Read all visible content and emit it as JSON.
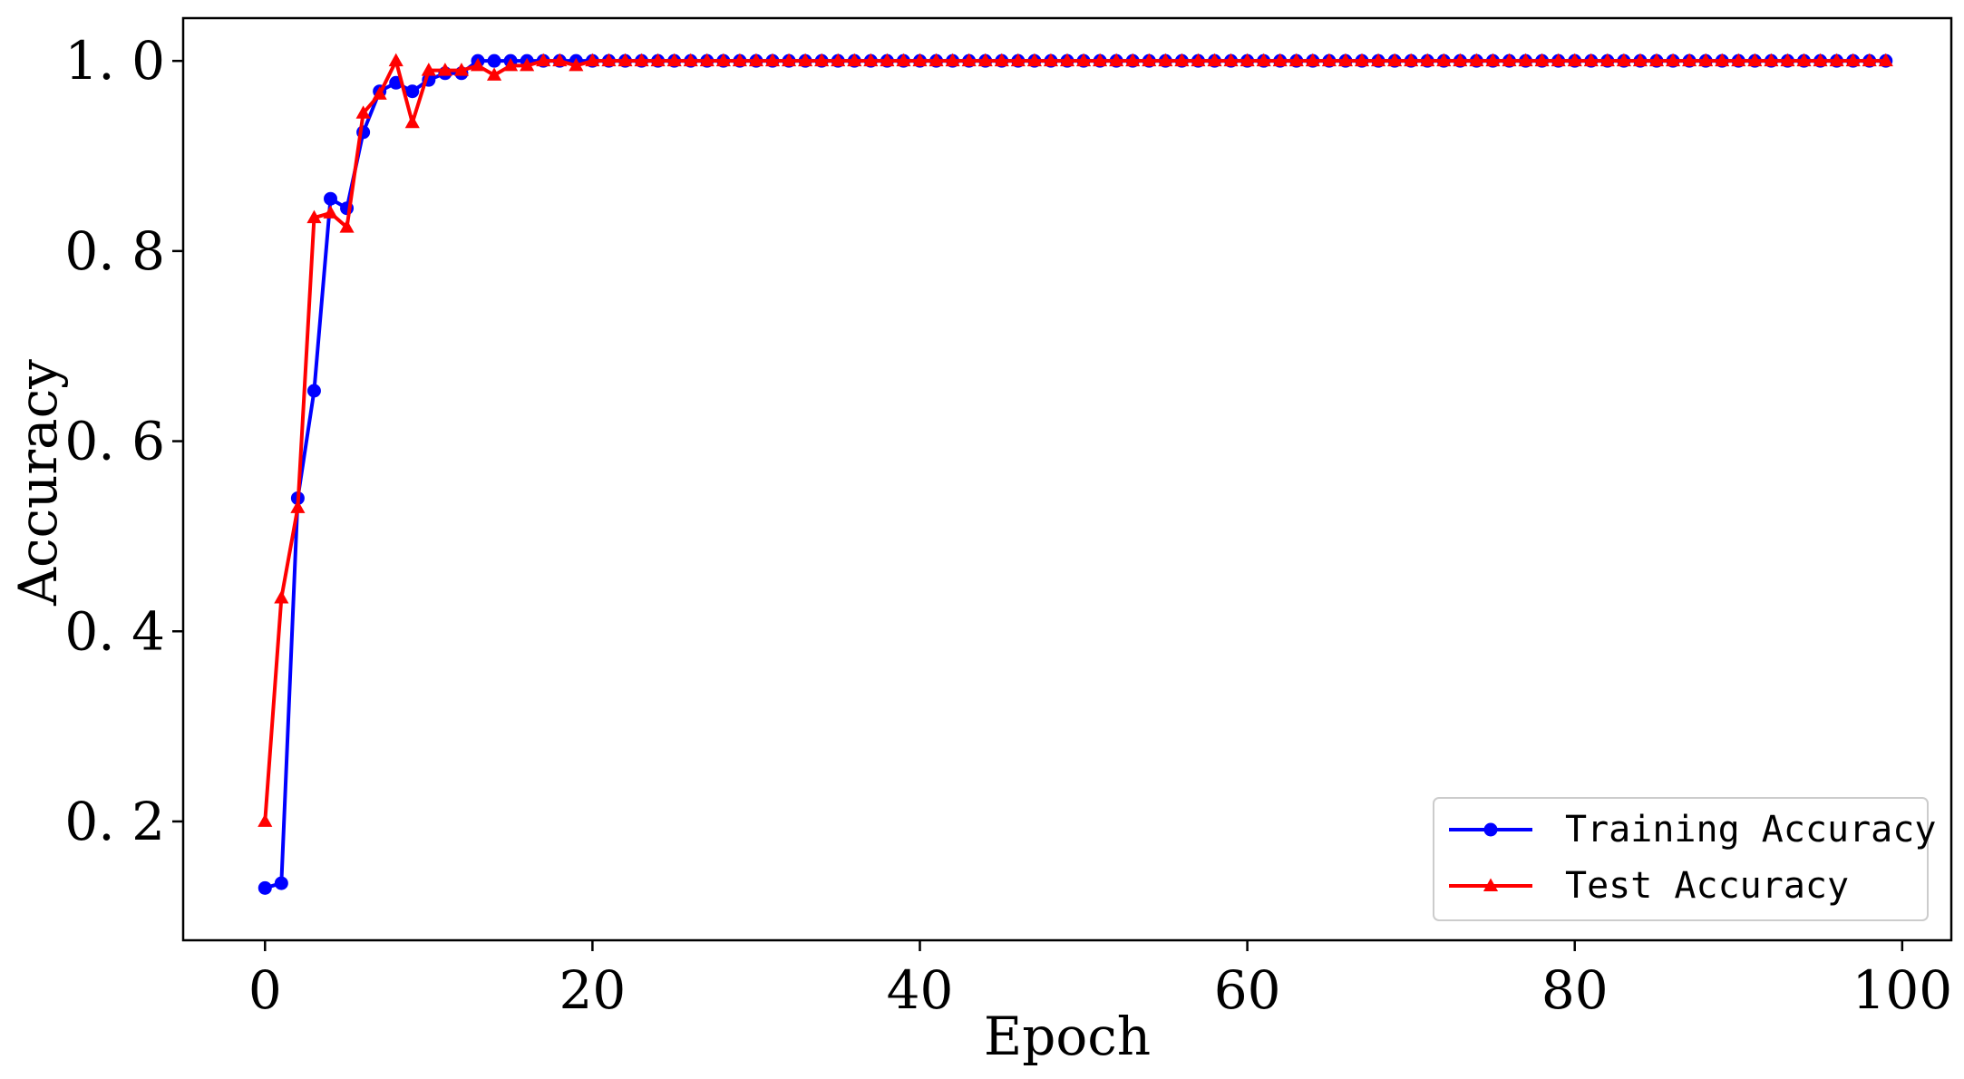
{
  "chart_data": {
    "type": "line",
    "xlabel": "Epoch",
    "ylabel": "Accuracy",
    "xlim": [
      -5,
      103
    ],
    "ylim": [
      0.075,
      1.045
    ],
    "xticks": [
      0,
      20,
      40,
      60,
      80,
      100
    ],
    "yticks": [
      0.2,
      0.4,
      0.6,
      0.8,
      1.0
    ],
    "xtick_labels": [
      "0",
      "20",
      "40",
      "60",
      "80",
      "100"
    ],
    "ytick_labels": [
      "0. 2",
      "0. 4",
      "0. 6",
      "0. 8",
      "1. 0"
    ],
    "grid": false,
    "legend_position": "lower-right",
    "series": [
      {
        "name": "Training Accuracy",
        "color": "#0000ff",
        "marker": "circle",
        "x": [
          0,
          1,
          2,
          3,
          4,
          5,
          6,
          7,
          8,
          9,
          10,
          11,
          12,
          13,
          14,
          15,
          16,
          17,
          18,
          19,
          20,
          21,
          22,
          23,
          24,
          25,
          26,
          27,
          28,
          29,
          30,
          31,
          32,
          33,
          34,
          35,
          36,
          37,
          38,
          39,
          40,
          41,
          42,
          43,
          44,
          45,
          46,
          47,
          48,
          49,
          50,
          51,
          52,
          53,
          54,
          55,
          56,
          57,
          58,
          59,
          60,
          61,
          62,
          63,
          64,
          65,
          66,
          67,
          68,
          69,
          70,
          71,
          72,
          73,
          74,
          75,
          76,
          77,
          78,
          79,
          80,
          81,
          82,
          83,
          84,
          85,
          86,
          87,
          88,
          89,
          90,
          91,
          92,
          93,
          94,
          95,
          96,
          97,
          98,
          99
        ],
        "values": [
          0.13,
          0.135,
          0.54,
          0.653,
          0.855,
          0.845,
          0.925,
          0.968,
          0.977,
          0.968,
          0.98,
          0.987,
          0.987,
          1.0,
          1.0,
          1.0,
          1.0,
          1.0,
          1.0,
          1.0,
          1.0,
          1.0,
          1.0,
          1.0,
          1.0,
          1.0,
          1.0,
          1.0,
          1.0,
          1.0,
          1.0,
          1.0,
          1.0,
          1.0,
          1.0,
          1.0,
          1.0,
          1.0,
          1.0,
          1.0,
          1.0,
          1.0,
          1.0,
          1.0,
          1.0,
          1.0,
          1.0,
          1.0,
          1.0,
          1.0,
          1.0,
          1.0,
          1.0,
          1.0,
          1.0,
          1.0,
          1.0,
          1.0,
          1.0,
          1.0,
          1.0,
          1.0,
          1.0,
          1.0,
          1.0,
          1.0,
          1.0,
          1.0,
          1.0,
          1.0,
          1.0,
          1.0,
          1.0,
          1.0,
          1.0,
          1.0,
          1.0,
          1.0,
          1.0,
          1.0,
          1.0,
          1.0,
          1.0,
          1.0,
          1.0,
          1.0,
          1.0,
          1.0,
          1.0,
          1.0,
          1.0,
          1.0,
          1.0,
          1.0,
          1.0,
          1.0,
          1.0,
          1.0,
          1.0,
          1.0
        ]
      },
      {
        "name": "Test Accuracy",
        "color": "#ff0000",
        "marker": "triangle",
        "x": [
          0,
          1,
          2,
          3,
          4,
          5,
          6,
          7,
          8,
          9,
          10,
          11,
          12,
          13,
          14,
          15,
          16,
          17,
          18,
          19,
          20,
          21,
          22,
          23,
          24,
          25,
          26,
          27,
          28,
          29,
          30,
          31,
          32,
          33,
          34,
          35,
          36,
          37,
          38,
          39,
          40,
          41,
          42,
          43,
          44,
          45,
          46,
          47,
          48,
          49,
          50,
          51,
          52,
          53,
          54,
          55,
          56,
          57,
          58,
          59,
          60,
          61,
          62,
          63,
          64,
          65,
          66,
          67,
          68,
          69,
          70,
          71,
          72,
          73,
          74,
          75,
          76,
          77,
          78,
          79,
          80,
          81,
          82,
          83,
          84,
          85,
          86,
          87,
          88,
          89,
          90,
          91,
          92,
          93,
          94,
          95,
          96,
          97,
          98,
          99
        ],
        "values": [
          0.2,
          0.435,
          0.53,
          0.835,
          0.84,
          0.825,
          0.945,
          0.965,
          1.0,
          0.935,
          0.99,
          0.99,
          0.99,
          0.995,
          0.985,
          0.995,
          0.995,
          1.0,
          1.0,
          0.995,
          1.0,
          1.0,
          1.0,
          1.0,
          1.0,
          1.0,
          1.0,
          1.0,
          1.0,
          1.0,
          1.0,
          1.0,
          1.0,
          1.0,
          1.0,
          1.0,
          1.0,
          1.0,
          1.0,
          1.0,
          1.0,
          1.0,
          1.0,
          1.0,
          1.0,
          1.0,
          1.0,
          1.0,
          1.0,
          1.0,
          1.0,
          1.0,
          1.0,
          1.0,
          1.0,
          1.0,
          1.0,
          1.0,
          1.0,
          1.0,
          1.0,
          1.0,
          1.0,
          1.0,
          1.0,
          1.0,
          1.0,
          1.0,
          1.0,
          1.0,
          1.0,
          1.0,
          1.0,
          1.0,
          1.0,
          1.0,
          1.0,
          1.0,
          1.0,
          1.0,
          1.0,
          1.0,
          1.0,
          1.0,
          1.0,
          1.0,
          1.0,
          1.0,
          1.0,
          1.0,
          1.0,
          1.0,
          1.0,
          1.0,
          1.0,
          1.0,
          1.0,
          1.0,
          1.0,
          1.0
        ]
      }
    ]
  }
}
